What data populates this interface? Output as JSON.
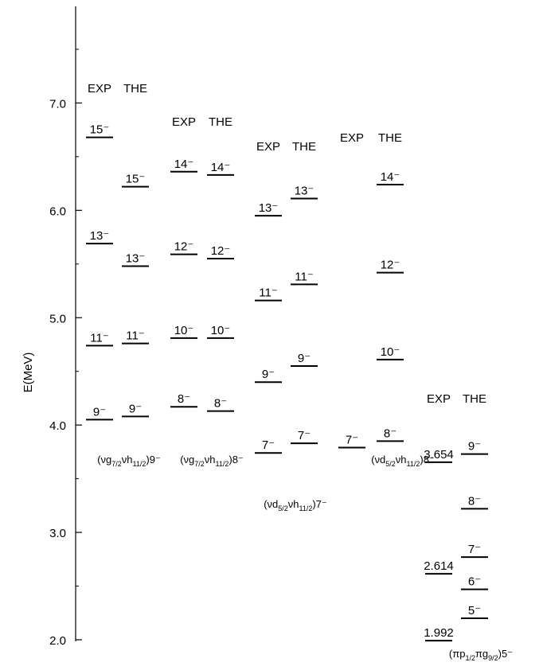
{
  "chart_data": {
    "type": "level-scheme",
    "ylabel": "E(MeV)",
    "ylim": [
      2,
      7.9
    ],
    "yticks": [
      {
        "value": 2,
        "label": "2.0"
      },
      {
        "value": 3,
        "label": "3.0"
      },
      {
        "value": 4,
        "label": "4.0"
      },
      {
        "value": 5,
        "label": "5.0"
      },
      {
        "value": 6,
        "label": "6.0"
      },
      {
        "value": 7,
        "label": "7.0"
      }
    ],
    "minor_yticks": [
      2.5,
      3.5,
      4.5,
      5.5,
      6.5,
      7.5
    ],
    "groups": [
      {
        "label": [
          "(νg",
          "7/2",
          "νh",
          "11/2",
          ")9⁻"
        ],
        "columns": [
          {
            "name": "EXP",
            "levels": [
              {
                "value": 6.68,
                "label": "15⁻"
              },
              {
                "value": 5.69,
                "label": "13⁻"
              },
              {
                "value": 4.74,
                "label": "11⁻"
              },
              {
                "value": 4.05,
                "label": "9⁻"
              }
            ]
          },
          {
            "name": "THE",
            "levels": [
              {
                "value": 6.22,
                "label": "15⁻"
              },
              {
                "value": 5.48,
                "label": "13⁻"
              },
              {
                "value": 4.76,
                "label": "11⁻"
              },
              {
                "value": 4.08,
                "label": "9⁻"
              }
            ]
          }
        ]
      },
      {
        "label": [
          "(νg",
          "7/2",
          "νh",
          "11/2",
          ")8⁻"
        ],
        "columns": [
          {
            "name": "EXP",
            "levels": [
              {
                "value": 6.36,
                "label": "14⁻"
              },
              {
                "value": 5.59,
                "label": "12⁻"
              },
              {
                "value": 4.81,
                "label": "10⁻"
              },
              {
                "value": 4.17,
                "label": "8⁻"
              }
            ]
          },
          {
            "name": "THE",
            "levels": [
              {
                "value": 6.33,
                "label": "14⁻"
              },
              {
                "value": 5.55,
                "label": "12⁻"
              },
              {
                "value": 4.81,
                "label": "10⁻"
              },
              {
                "value": 4.13,
                "label": "8⁻"
              }
            ]
          }
        ]
      },
      {
        "label": [
          "(νd",
          "5/2",
          "νh",
          "11/2",
          ")7⁻"
        ],
        "columns": [
          {
            "name": "EXP",
            "levels": [
              {
                "value": 5.95,
                "label": "13⁻"
              },
              {
                "value": 5.16,
                "label": "11⁻"
              },
              {
                "value": 4.4,
                "label": "9⁻"
              },
              {
                "value": 3.74,
                "label": "7⁻"
              }
            ]
          },
          {
            "name": "THE",
            "levels": [
              {
                "value": 6.11,
                "label": "13⁻"
              },
              {
                "value": 5.31,
                "label": "11⁻"
              },
              {
                "value": 4.55,
                "label": "9⁻"
              },
              {
                "value": 3.83,
                "label": "7⁻"
              }
            ]
          }
        ]
      },
      {
        "label": [
          "(νd",
          "5/2",
          "νh",
          "11/2",
          ")8⁻"
        ],
        "columns": [
          {
            "name": "EXP",
            "levels": [
              {
                "value": 3.79,
                "label": "7⁻"
              }
            ]
          },
          {
            "name": "THE",
            "levels": [
              {
                "value": 6.24,
                "label": "14⁻"
              },
              {
                "value": 5.42,
                "label": "12⁻"
              },
              {
                "value": 4.61,
                "label": "10⁻"
              },
              {
                "value": 3.85,
                "label": "8⁻"
              }
            ]
          }
        ]
      },
      {
        "label": [
          "(πp",
          "1/2",
          "πg",
          "9/2",
          ")5⁻"
        ],
        "columns": [
          {
            "name": "EXP",
            "levels": [
              {
                "value": 3.654
              },
              {
                "value": 2.614
              },
              {
                "value": 1.992
              }
            ]
          },
          {
            "name": "THE",
            "levels": [
              {
                "value": 3.73,
                "label": "9⁻"
              },
              {
                "value": 3.22,
                "label": "8⁻"
              },
              {
                "value": 2.77,
                "label": "7⁻"
              },
              {
                "value": 2.47,
                "label": "6⁻"
              },
              {
                "value": 2.2,
                "label": "5⁻"
              }
            ]
          }
        ]
      }
    ]
  }
}
